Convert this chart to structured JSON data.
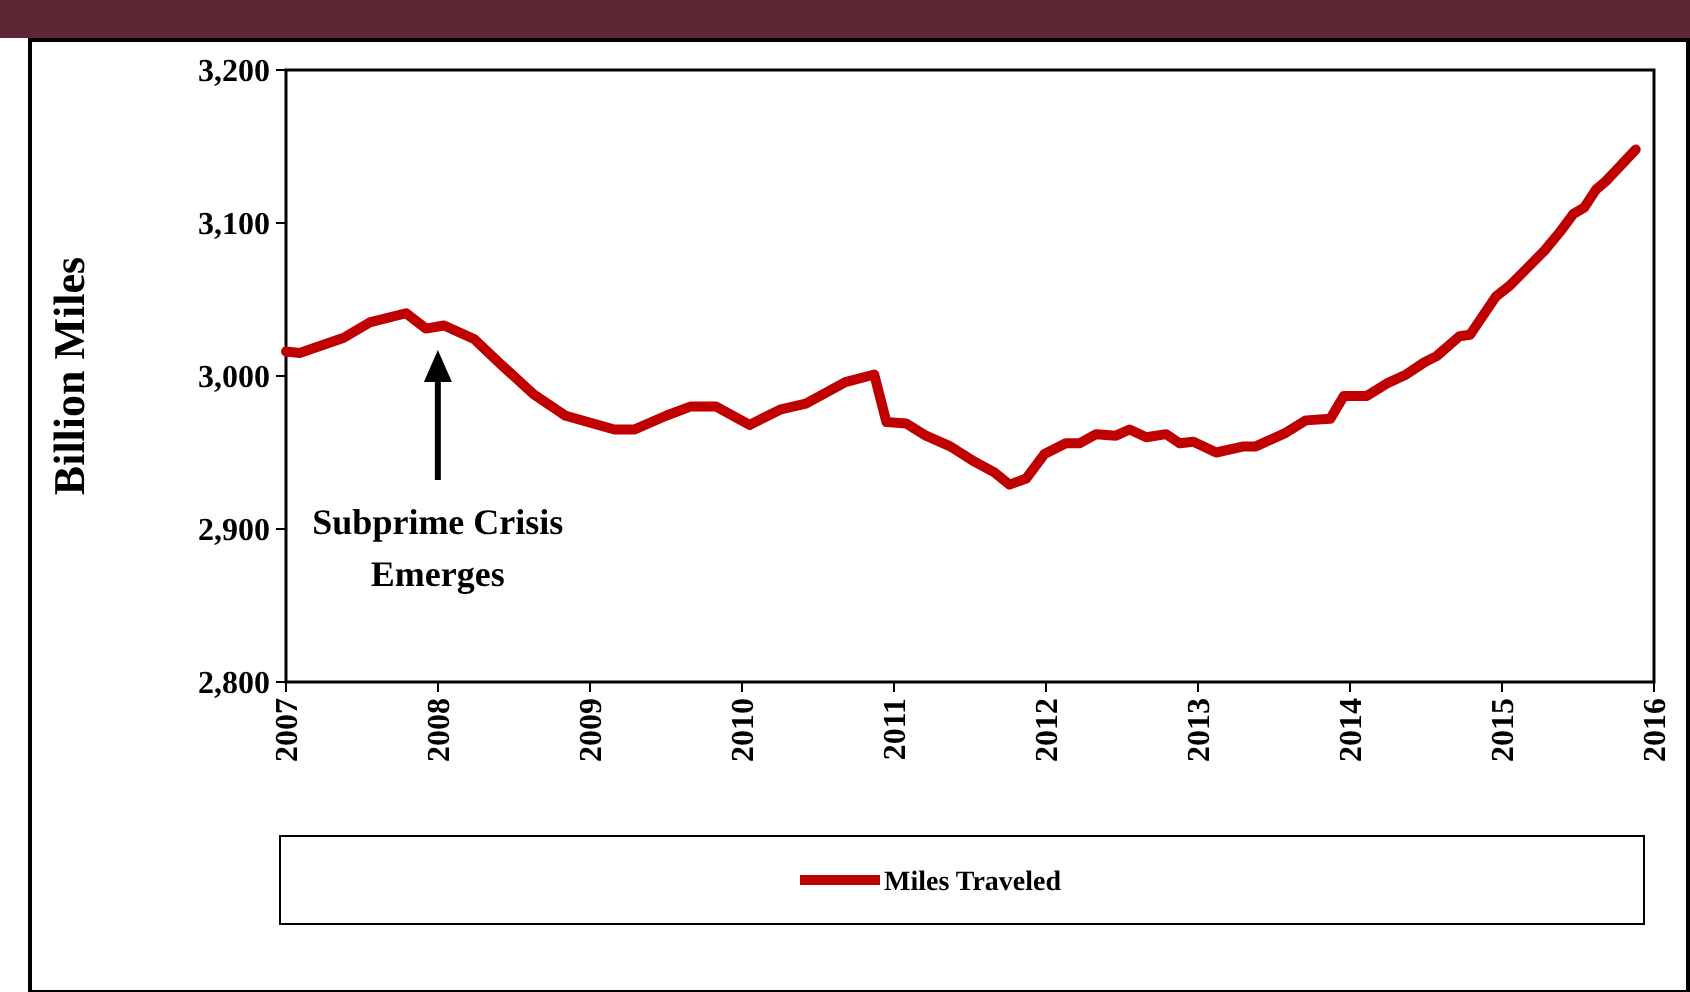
{
  "chart_data": {
    "type": "line",
    "ylabel": "Billion Miles",
    "xlim": [
      2007,
      2016
    ],
    "xticks": [
      2007,
      2008,
      2009,
      2010,
      2011,
      2012,
      2013,
      2014,
      2015,
      2016
    ],
    "ylim": [
      2800,
      3200
    ],
    "yticks": [
      {
        "value": 2800,
        "label": "2,800"
      },
      {
        "value": 2900,
        "label": "2,900"
      },
      {
        "value": 3000,
        "label": "3,000"
      },
      {
        "value": 3100,
        "label": "3,100"
      },
      {
        "value": 3200,
        "label": "3,200"
      }
    ],
    "grid": false,
    "legend": "bottom",
    "marker": "none",
    "line_style": "solid",
    "annotations": [
      "Subprime Crisis Emerges"
    ],
    "series": [
      {
        "name": "Miles Traveled",
        "color": "#c00000",
        "x": [
          2007,
          2007.09,
          2007.38,
          2007.55,
          2007.79,
          2007.92,
          2008.04,
          2008.24,
          2008.41,
          2008.63,
          2008.84,
          2009.16,
          2009.29,
          2009.5,
          2009.66,
          2009.83,
          2010.05,
          2010.25,
          2010.42,
          2010.68,
          2010.87,
          2010.95,
          2011.08,
          2011.21,
          2011.37,
          2011.53,
          2011.66,
          2011.76,
          2011.87,
          2011.99,
          2012.13,
          2012.22,
          2012.33,
          2012.46,
          2012.55,
          2012.66,
          2012.79,
          2012.88,
          2012.97,
          2013.12,
          2013.3,
          2013.38,
          2013.58,
          2013.71,
          2013.87,
          2013.96,
          2014.11,
          2014.24,
          2014.37,
          2014.49,
          2014.57,
          2014.72,
          2014.79,
          2014.96,
          2015.05,
          2015.28,
          2015.38,
          2015.47,
          2015.54,
          2015.62,
          2015.68,
          2015.88
        ],
        "values": [
          3016,
          3015,
          3025,
          3035,
          3041,
          3031,
          3033,
          3024,
          3008,
          2988,
          2974,
          2965,
          2965,
          2974,
          2980,
          2980,
          2968,
          2978,
          2982,
          2996,
          3001,
          2970,
          2969,
          2961,
          2954,
          2944,
          2937,
          2929,
          2933,
          2949,
          2956,
          2956,
          2962,
          2961,
          2965,
          2960,
          2962,
          2956,
          2957,
          2950,
          2954,
          2954,
          2963,
          2971,
          2972,
          2987,
          2987,
          2995,
          3001,
          3009,
          3013,
          3026,
          3027,
          3052,
          3059,
          3082,
          3094,
          3106,
          3110,
          3122,
          3127,
          3148
        ]
      }
    ]
  }
}
